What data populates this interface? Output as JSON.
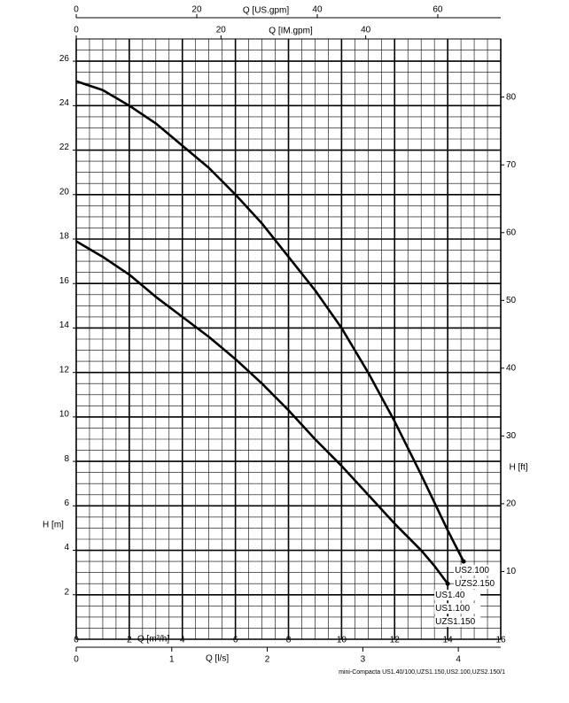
{
  "chart_data": {
    "type": "line",
    "x_label": "Q [m³/h]",
    "y_label": "H [m]",
    "y2_label": "H [ft]",
    "xlim": [
      0,
      16
    ],
    "xticks": [
      0,
      2,
      4,
      6,
      8,
      10,
      12,
      14,
      16
    ],
    "ylim": [
      0,
      27
    ],
    "yticks": [
      2,
      4,
      6,
      8,
      10,
      12,
      14,
      16,
      18,
      20,
      22,
      24,
      26
    ],
    "y2lim": [
      0,
      88.58
    ],
    "y2ticks": [
      10,
      20,
      30,
      40,
      50,
      60,
      70,
      80
    ],
    "x_ls": {
      "label": "Q [l/s]",
      "lim": [
        0,
        4.444
      ],
      "ticks": [
        0,
        1,
        2,
        3,
        4
      ]
    },
    "x_us": {
      "label": "Q [US.gpm]",
      "lim": [
        0,
        70.45
      ],
      "ticks": [
        0,
        20,
        40,
        60
      ]
    },
    "x_im": {
      "label": "Q [IM.gpm]",
      "lim": [
        0,
        58.66
      ],
      "ticks": [
        0,
        20,
        40
      ]
    },
    "grid": {
      "major": 2,
      "minor": 0.5
    },
    "series": [
      {
        "labels": [
          "US2.100",
          "UZS2.150"
        ],
        "color": "#000000",
        "x": [
          0,
          1,
          2,
          3,
          4,
          5,
          6,
          7,
          8,
          9,
          10,
          11,
          12,
          13,
          14,
          14.6
        ],
        "values": [
          25.1,
          24.7,
          24.0,
          23.2,
          22.2,
          21.2,
          20.0,
          18.7,
          17.2,
          15.7,
          14.0,
          12.0,
          9.8,
          7.4,
          4.9,
          3.5
        ]
      },
      {
        "labels": [
          "US1.40",
          "US1.100",
          "UZS1.150"
        ],
        "color": "#000000",
        "x": [
          0,
          1,
          2,
          3,
          4,
          5,
          6,
          7,
          8,
          9,
          10,
          11,
          12,
          13,
          13.5,
          14
        ],
        "values": [
          17.9,
          17.2,
          16.4,
          15.4,
          14.5,
          13.6,
          12.6,
          11.5,
          10.3,
          9.0,
          7.8,
          6.5,
          5.2,
          4.0,
          3.3,
          2.5
        ]
      }
    ],
    "footnote": "mini-Compacta US1.40/100,UZS1.150,US2.100,UZS2.150/1"
  }
}
